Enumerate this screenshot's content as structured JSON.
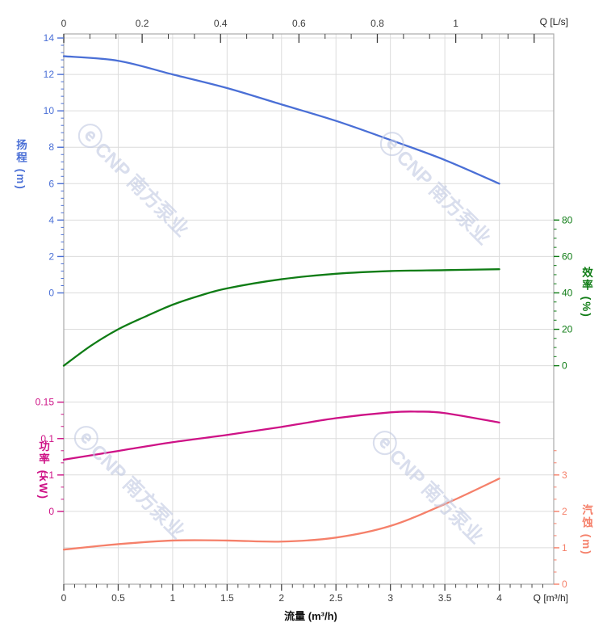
{
  "watermark": {
    "logo_glyph": "ⓔ",
    "text": "CNP 南方泵业",
    "color": "rgba(191,200,225,0.60)"
  },
  "chart_data": {
    "type": "line",
    "title": "",
    "grid": true,
    "legend": "none",
    "colors": {
      "grid": "#dcdcdc",
      "border": "#ababab",
      "tick": "#3d3d3d",
      "label": "#3d3d3d"
    },
    "x_bottom": {
      "axis_label": "流量 (m³/h)",
      "corner_label": "Q [m³/h]",
      "tick_labels": [
        "0",
        "0.5",
        "1",
        "1.5",
        "2",
        "2.5",
        "3",
        "3.5",
        "4"
      ],
      "tick_values": [
        0,
        0.5,
        1,
        1.5,
        2,
        2.5,
        3,
        3.5,
        4
      ],
      "range": [
        0,
        4.5
      ],
      "minor_step": 0.1
    },
    "x_top": {
      "corner_label": "Q [L/s]",
      "tick_labels": [
        "0",
        "0.2",
        "0.4",
        "0.6",
        "0.8",
        "1"
      ],
      "tick_values": [
        0,
        0.2,
        0.4,
        0.6,
        0.8,
        1
      ],
      "range": [
        0,
        1.25
      ],
      "minor_step": 0.0666667,
      "lps_to_m3h": 3.6
    },
    "series": [
      {
        "id": "head",
        "name": "扬程",
        "axis_label": "扬程 (m)",
        "unit": "m",
        "color": "#4a6fd6",
        "side": "left",
        "tick_labels": [
          "14",
          "12",
          "10",
          "8",
          "6",
          "4",
          "2",
          "0"
        ],
        "tick_values": [
          14,
          12,
          10,
          8,
          6,
          4,
          2,
          0
        ],
        "minor_step": 0.4,
        "axis_range": [
          0,
          14
        ],
        "points": [
          [
            0,
            13
          ],
          [
            0.5,
            12.75
          ],
          [
            1,
            12.0
          ],
          [
            1.5,
            11.25
          ],
          [
            2,
            10.35
          ],
          [
            2.5,
            9.45
          ],
          [
            3,
            8.4
          ],
          [
            3.5,
            7.3
          ],
          [
            4,
            6.0
          ]
        ]
      },
      {
        "id": "efficiency",
        "name": "效率",
        "axis_label": "效率 (%)",
        "unit": "%",
        "color": "#0f7c15",
        "side": "right",
        "tick_labels": [
          "80",
          "60",
          "40",
          "20",
          "0"
        ],
        "tick_values": [
          80,
          60,
          40,
          20,
          0
        ],
        "minor_step": 5,
        "axis_range": [
          0,
          80
        ],
        "points": [
          [
            0,
            0
          ],
          [
            0.25,
            11
          ],
          [
            0.5,
            20
          ],
          [
            0.75,
            27
          ],
          [
            1,
            33.5
          ],
          [
            1.25,
            38.5
          ],
          [
            1.5,
            42.5
          ],
          [
            2,
            47.5
          ],
          [
            2.5,
            50.5
          ],
          [
            3,
            52
          ],
          [
            3.5,
            52.5
          ],
          [
            4,
            53
          ]
        ]
      },
      {
        "id": "power",
        "name": "功率",
        "axis_label": "功率 (kW)",
        "unit": "kW",
        "color": "#ce1286",
        "side": "left",
        "tick_labels": [
          "0.15",
          "0.1",
          "0.1",
          "0"
        ],
        "tick_values": [
          0.15,
          0.1,
          0.05,
          0
        ],
        "minor_step": 0.0166667,
        "axis_range": [
          0,
          0.15
        ],
        "points": [
          [
            0,
            0.071
          ],
          [
            0.5,
            0.083
          ],
          [
            1,
            0.095
          ],
          [
            1.5,
            0.105
          ],
          [
            2,
            0.116
          ],
          [
            2.5,
            0.128
          ],
          [
            3,
            0.136
          ],
          [
            3.25,
            0.137
          ],
          [
            3.5,
            0.135
          ],
          [
            4,
            0.122
          ]
        ]
      },
      {
        "id": "npsh",
        "name": "汽蚀",
        "axis_label": "汽蚀 (m)",
        "unit": "m",
        "color": "#f5806a",
        "side": "right",
        "tick_labels": [
          "3",
          "2",
          "1",
          "0"
        ],
        "tick_values": [
          3,
          2,
          1,
          0
        ],
        "minor_step": 0.3333333,
        "axis_range": [
          0,
          3.6667
        ],
        "points": [
          [
            0,
            0.95
          ],
          [
            0.5,
            1.1
          ],
          [
            1,
            1.2
          ],
          [
            1.5,
            1.2
          ],
          [
            2,
            1.17
          ],
          [
            2.5,
            1.28
          ],
          [
            3,
            1.6
          ],
          [
            3.5,
            2.2
          ],
          [
            4,
            2.9
          ]
        ]
      }
    ]
  }
}
